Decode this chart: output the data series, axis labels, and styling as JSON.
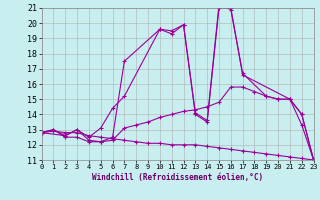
{
  "xlabel": "Windchill (Refroidissement éolien,°C)",
  "bg_color": "#c8eef0",
  "line_color": "#990099",
  "grid_color": "#b0b0b0",
  "xlim": [
    0,
    23
  ],
  "ylim": [
    11,
    21
  ],
  "xticks": [
    0,
    1,
    2,
    3,
    4,
    5,
    6,
    7,
    8,
    9,
    10,
    11,
    12,
    13,
    14,
    15,
    16,
    17,
    18,
    19,
    20,
    21,
    22,
    23
  ],
  "yticks": [
    11,
    12,
    13,
    14,
    15,
    16,
    17,
    18,
    19,
    20,
    21
  ],
  "lines": [
    {
      "x": [
        0,
        1,
        2,
        3,
        4,
        5,
        6,
        7,
        10,
        11,
        12,
        13,
        14,
        15,
        16,
        17,
        21,
        22,
        23
      ],
      "y": [
        12.8,
        13.0,
        12.6,
        13.0,
        12.3,
        12.2,
        12.5,
        17.5,
        19.6,
        19.3,
        19.9,
        14.0,
        13.5,
        21.0,
        21.0,
        16.6,
        15.0,
        14.0,
        11.0
      ]
    },
    {
      "x": [
        0,
        2,
        3,
        4,
        5,
        6,
        7,
        10,
        11,
        12,
        13,
        14,
        15,
        16,
        17,
        19,
        20,
        21,
        22,
        23
      ],
      "y": [
        12.8,
        12.6,
        13.0,
        12.5,
        13.1,
        14.4,
        15.2,
        19.6,
        19.5,
        19.9,
        14.1,
        13.6,
        21.2,
        20.9,
        16.7,
        15.2,
        15.0,
        15.0,
        13.3,
        11.0
      ]
    },
    {
      "x": [
        0,
        1,
        2,
        3,
        4,
        5,
        6,
        7,
        8,
        9,
        10,
        11,
        12,
        13,
        14,
        15,
        16,
        17,
        18,
        19,
        20,
        21,
        22,
        23
      ],
      "y": [
        12.8,
        13.0,
        12.5,
        12.5,
        12.2,
        12.2,
        12.3,
        13.1,
        13.3,
        13.5,
        13.8,
        14.0,
        14.2,
        14.3,
        14.5,
        14.8,
        15.8,
        15.8,
        15.5,
        15.2,
        15.0,
        15.0,
        14.0,
        11.0
      ]
    },
    {
      "x": [
        0,
        1,
        2,
        3,
        4,
        5,
        6,
        7,
        8,
        9,
        10,
        11,
        12,
        13,
        14,
        15,
        16,
        17,
        18,
        19,
        20,
        21,
        22,
        23
      ],
      "y": [
        12.8,
        12.9,
        12.8,
        12.8,
        12.6,
        12.5,
        12.4,
        12.3,
        12.2,
        12.1,
        12.1,
        12.0,
        12.0,
        12.0,
        11.9,
        11.8,
        11.7,
        11.6,
        11.5,
        11.4,
        11.3,
        11.2,
        11.1,
        11.0
      ]
    }
  ]
}
